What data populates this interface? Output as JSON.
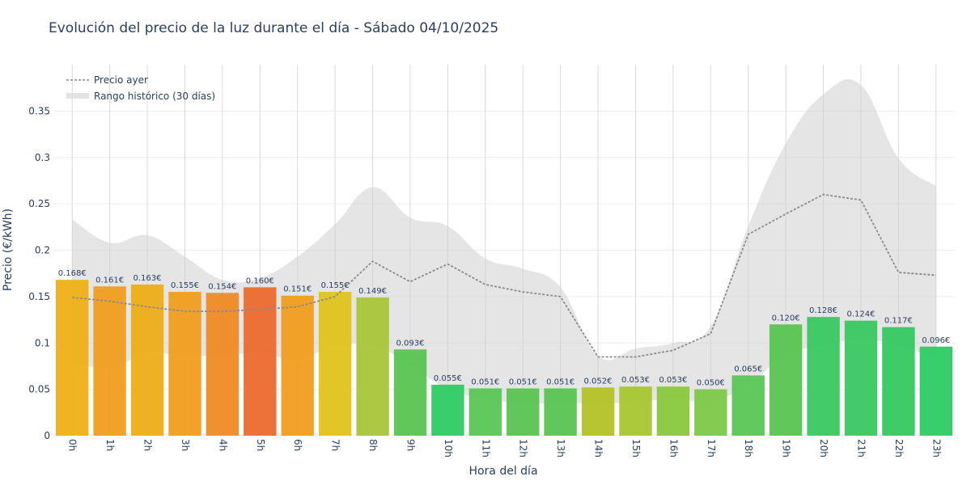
{
  "chart_data": {
    "type": "bar",
    "title": "Evolución del precio de la luz durante el día - Sábado 04/10/2025",
    "xlabel": "Hora del día",
    "ylabel": "Precio (€/kWh)",
    "ylim": [
      0,
      0.4
    ],
    "yticks": [
      0,
      0.05,
      0.1,
      0.15,
      0.2,
      0.25,
      0.3,
      0.35
    ],
    "ytick_labels": [
      "0",
      "0.05",
      "0.1",
      "0.15",
      "0.2",
      "0.25",
      "0.3",
      "0.35"
    ],
    "grid": true,
    "legend_position": "top-left",
    "categories": [
      "0h",
      "1h",
      "2h",
      "3h",
      "4h",
      "5h",
      "6h",
      "7h",
      "8h",
      "9h",
      "10h",
      "11h",
      "12h",
      "13h",
      "14h",
      "15h",
      "16h",
      "17h",
      "18h",
      "19h",
      "20h",
      "21h",
      "22h",
      "23h"
    ],
    "values": [
      0.168,
      0.161,
      0.163,
      0.155,
      0.154,
      0.16,
      0.151,
      0.155,
      0.149,
      0.093,
      0.055,
      0.051,
      0.051,
      0.051,
      0.052,
      0.053,
      0.053,
      0.05,
      0.065,
      0.12,
      0.128,
      0.124,
      0.117,
      0.096
    ],
    "value_labels": [
      "0.168€",
      "0.161€",
      "0.163€",
      "0.155€",
      "0.154€",
      "0.160€",
      "0.151€",
      "0.155€",
      "0.149€",
      "0.093€",
      "0.055€",
      "0.051€",
      "0.051€",
      "0.051€",
      "0.052€",
      "0.053€",
      "0.053€",
      "0.050€",
      "0.065€",
      "0.120€",
      "0.128€",
      "0.124€",
      "0.117€",
      "0.096€"
    ],
    "bar_colors": [
      "#efaf16",
      "#ef9d1e",
      "#eead18",
      "#ef9d1e",
      "#ef8a24",
      "#eb6a2c",
      "#ef9d1e",
      "#e0c21a",
      "#a9c63a",
      "#5ac452",
      "#2ecb64",
      "#59c654",
      "#5ac452",
      "#5ac452",
      "#b4c228",
      "#a8c632",
      "#8ac83e",
      "#7dc848",
      "#59c654",
      "#5ac452",
      "#38c860",
      "#38c860",
      "#35c862",
      "#2ecb64"
    ],
    "series": [
      {
        "name": "Precio ayer",
        "type": "line",
        "color": "#8c8c8c",
        "values": [
          0.149,
          0.145,
          0.139,
          0.134,
          0.134,
          0.136,
          0.139,
          0.15,
          0.188,
          0.166,
          0.185,
          0.163,
          0.155,
          0.15,
          0.085,
          0.085,
          0.092,
          0.11,
          0.217,
          0.239,
          0.26,
          0.254,
          0.176,
          0.173
        ]
      },
      {
        "name": "Rango histórico (30 días)",
        "type": "area",
        "color": "#d6d6d6",
        "upper": [
          0.233,
          0.208,
          0.216,
          0.193,
          0.168,
          0.17,
          0.193,
          0.228,
          0.268,
          0.235,
          0.226,
          0.191,
          0.18,
          0.16,
          0.086,
          0.094,
          0.1,
          0.118,
          0.226,
          0.315,
          0.368,
          0.378,
          0.299,
          0.269
        ],
        "lower": [
          0.08,
          0.073,
          0.089,
          0.086,
          0.087,
          0.089,
          0.083,
          0.096,
          0.098,
          0.076,
          0.05,
          0.04,
          0.035,
          0.035,
          0.035,
          0.036,
          0.04,
          0.037,
          0.055,
          0.087,
          0.097,
          0.104,
          0.097,
          0.083
        ]
      }
    ]
  }
}
